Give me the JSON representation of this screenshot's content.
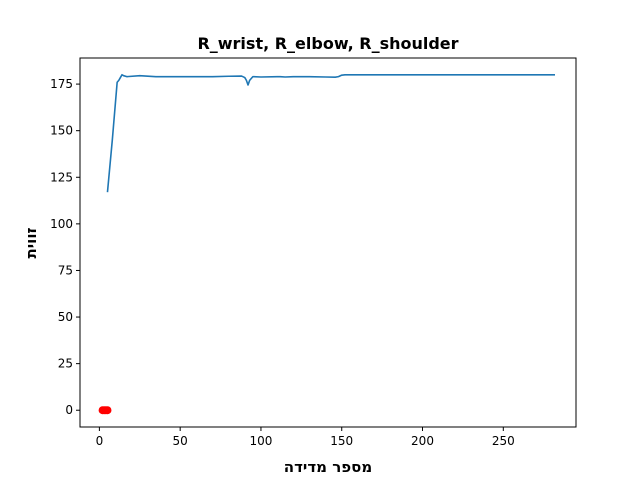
{
  "chart_data": {
    "type": "line",
    "title": "R_wrist, R_elbow, R_shoulder",
    "xlabel": "מספר מדידה",
    "ylabel": "זווית",
    "xlim": [
      -12,
      295
    ],
    "ylim": [
      -9,
      189
    ],
    "xticks": [
      0,
      50,
      100,
      150,
      200,
      250
    ],
    "yticks": [
      0,
      25,
      50,
      75,
      100,
      125,
      150,
      175
    ],
    "grid": false,
    "colors": {
      "line": "#1f77b4",
      "points": "#ff0000"
    },
    "series": [
      {
        "kind": "line",
        "x": [
          5,
          8,
          11,
          12,
          13,
          14,
          15,
          17,
          25,
          35,
          50,
          60,
          70,
          80,
          88,
          90,
          91,
          92,
          93,
          95,
          100,
          110,
          112,
          115,
          120,
          130,
          140,
          146,
          148,
          150,
          152,
          155,
          160,
          180,
          200,
          220,
          240,
          260,
          282
        ],
        "y": [
          117,
          145,
          176,
          177,
          178.5,
          180,
          179.5,
          179,
          179.5,
          179,
          179,
          179,
          179,
          179.2,
          179.3,
          178.5,
          177,
          174.5,
          177,
          179,
          178.8,
          179,
          179,
          178.8,
          179,
          179,
          178.8,
          178.7,
          179,
          179.8,
          180,
          180,
          180,
          180,
          180,
          180,
          180,
          180,
          180
        ]
      },
      {
        "kind": "scatter",
        "x": [
          2,
          3,
          4,
          5
        ],
        "y": [
          0,
          0,
          0,
          0
        ]
      }
    ]
  }
}
